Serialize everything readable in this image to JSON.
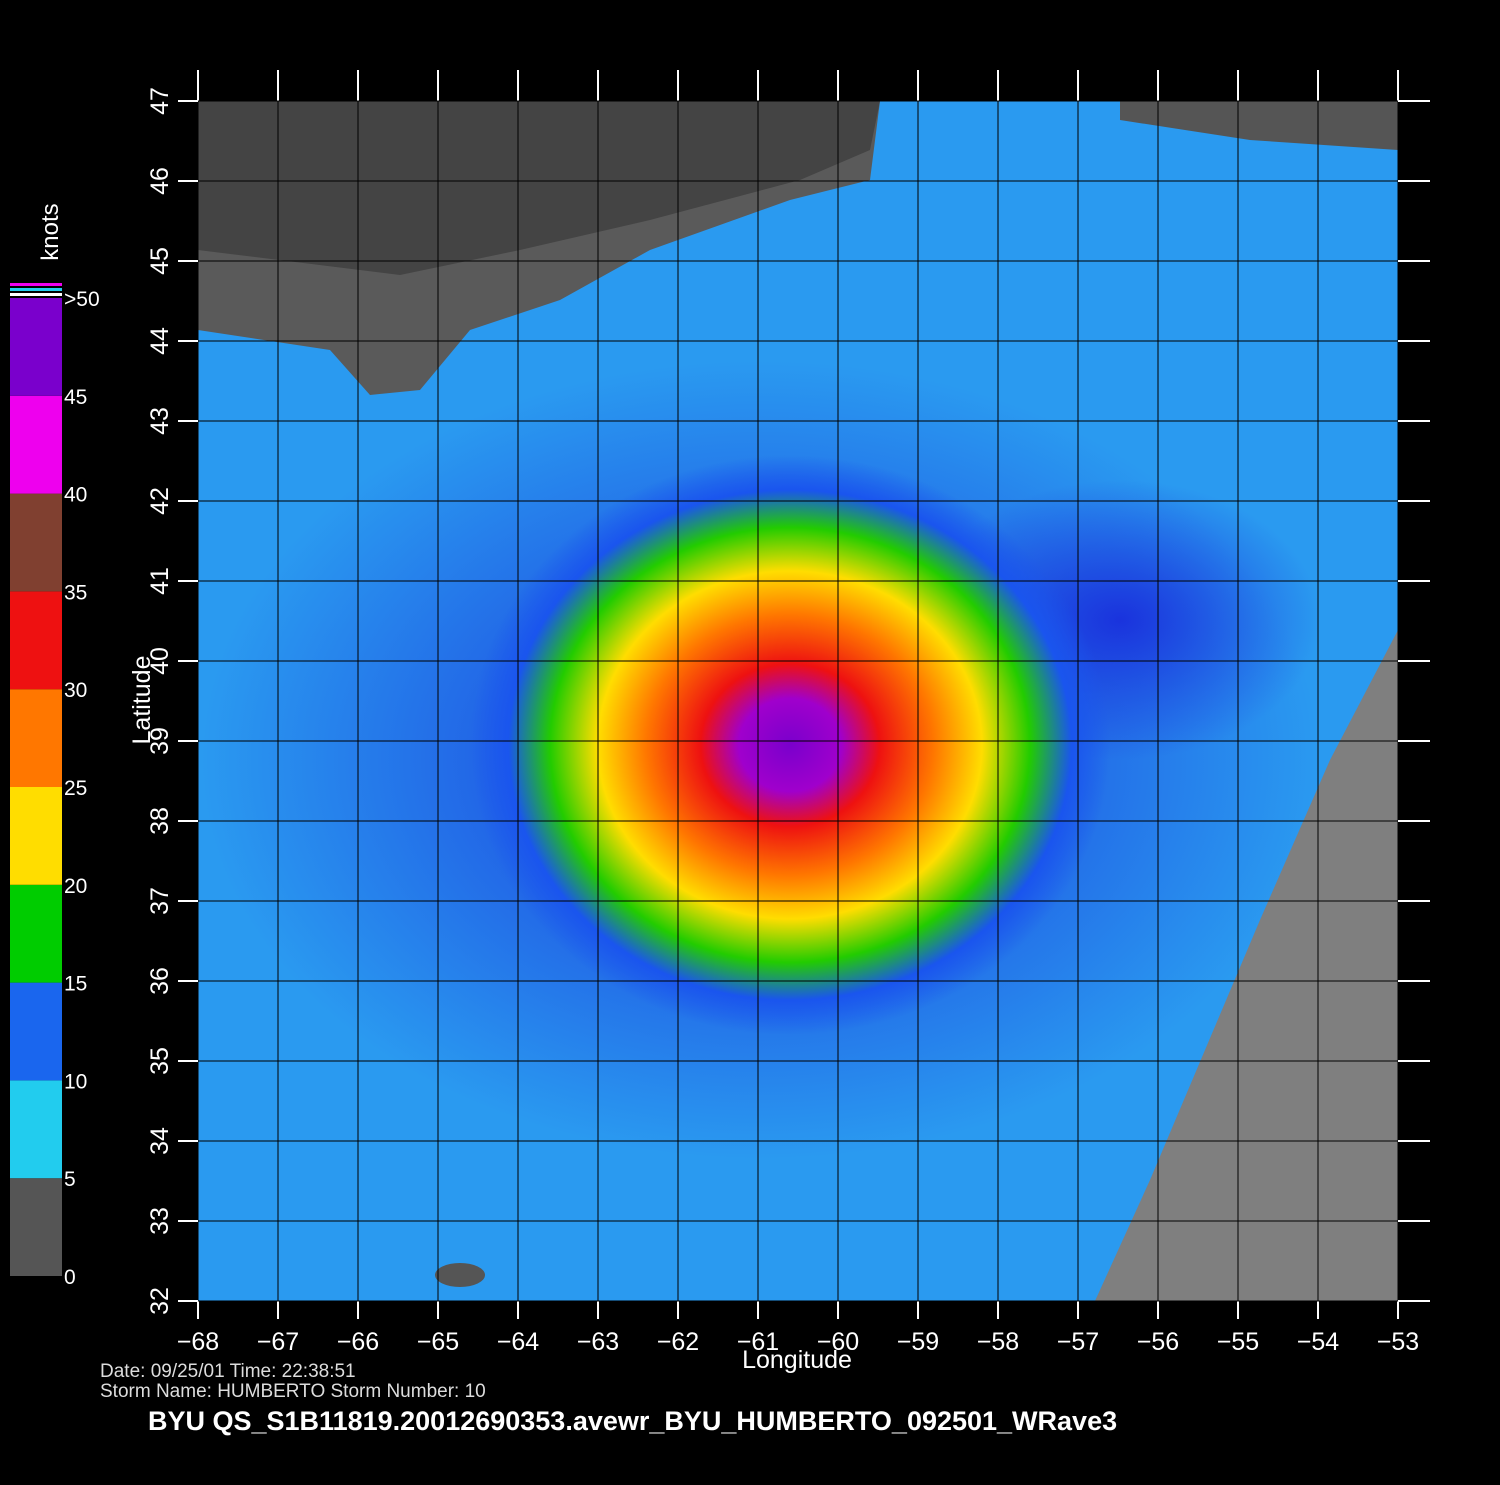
{
  "map": {
    "title": "BYU  QS_S1B11819.20012690353.avewr_BYU_HUMBERTO_092501_WRave3",
    "date_line": "Date: 09/25/01   Time: 22:38:51",
    "storm_line": "Storm  Name: HUMBERTO   Storm  Number: 10",
    "xlabel": "Longitude",
    "ylabel": "Latitude",
    "xlim": [
      -68,
      -53
    ],
    "ylim": [
      32,
      47
    ],
    "xticks": [
      {
        "value": -68,
        "label": "−68"
      },
      {
        "value": -67,
        "label": "−67"
      },
      {
        "value": -66,
        "label": "−66"
      },
      {
        "value": -65,
        "label": "−65"
      },
      {
        "value": -64,
        "label": "−64"
      },
      {
        "value": -63,
        "label": "−63"
      },
      {
        "value": -62,
        "label": "−62"
      },
      {
        "value": -61,
        "label": "−61"
      },
      {
        "value": -60,
        "label": "−60"
      },
      {
        "value": -59,
        "label": "−59"
      },
      {
        "value": -58,
        "label": "−58"
      },
      {
        "value": -57,
        "label": "−57"
      },
      {
        "value": -56,
        "label": "−56"
      },
      {
        "value": -55,
        "label": "−55"
      },
      {
        "value": -54,
        "label": "−54"
      },
      {
        "value": -53,
        "label": "−53"
      }
    ],
    "yticks": [
      32,
      33,
      34,
      35,
      36,
      37,
      38,
      39,
      40,
      41,
      42,
      43,
      44,
      45,
      46,
      47
    ],
    "grid": true,
    "colorbar": {
      "label": "knots",
      "lim": [
        0,
        50
      ],
      "ticks": [
        0,
        5,
        10,
        15,
        20,
        25,
        30,
        35,
        40,
        45,
        {
          "value": 50,
          "label": ">50"
        }
      ],
      "colors": [
        "#555555",
        "#22ccee",
        "#1a66ee",
        "#00cc00",
        "#ffdd00",
        "#ff7700",
        "#ee1111",
        "#804030",
        "#ee00ee",
        "#7a00cc"
      ]
    }
  }
}
